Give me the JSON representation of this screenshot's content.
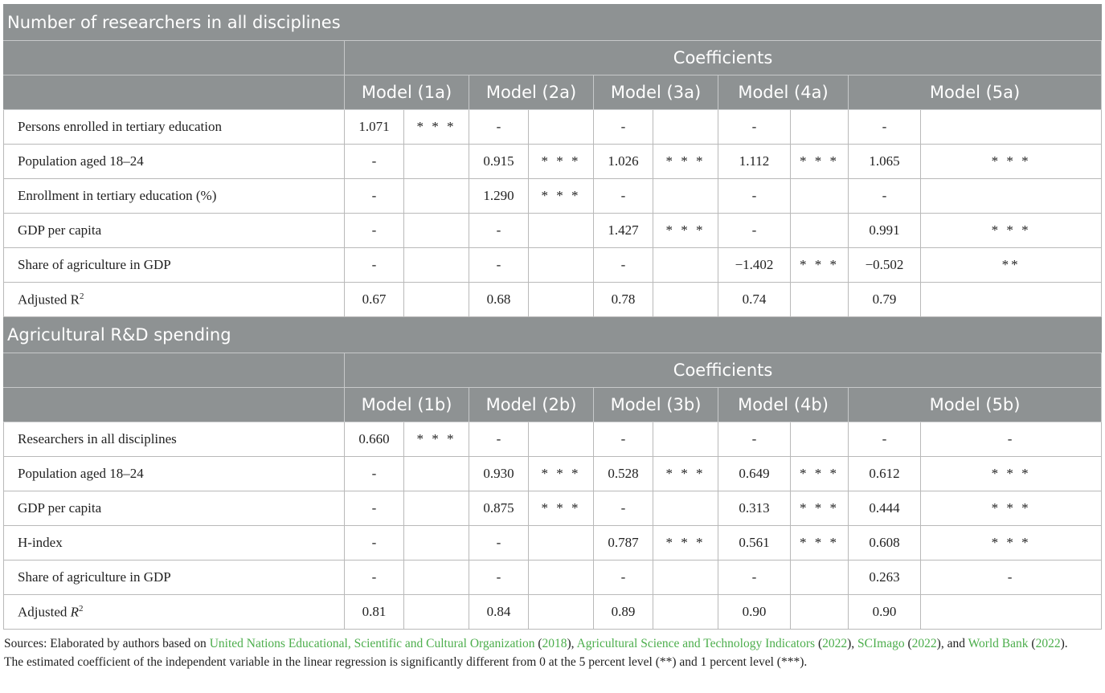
{
  "sections": [
    {
      "title": "Number of researchers in all disciplines",
      "coef_header": "Coefficients",
      "models": [
        "Model (1a)",
        "Model (2a)",
        "Model (3a)",
        "Model (4a)",
        "Model (5a)"
      ],
      "rows": [
        {
          "label": "Persons enrolled in tertiary education",
          "cells": [
            "1.071",
            "* * *",
            "-",
            "",
            "-",
            "",
            "-",
            "",
            "-",
            ""
          ]
        },
        {
          "label": "Population aged 18–24",
          "cells": [
            "-",
            "",
            "0.915",
            "* * *",
            "1.026",
            "* * *",
            "1.112",
            "* * *",
            "1.065",
            "* * *"
          ]
        },
        {
          "label": "Enrollment in tertiary education (%)",
          "cells": [
            "-",
            "",
            "1.290",
            "* * *",
            "-",
            "",
            "-",
            "",
            "-",
            ""
          ]
        },
        {
          "label": "GDP per capita",
          "cells": [
            "-",
            "",
            "-",
            "",
            "1.427",
            "* * *",
            "-",
            "",
            "0.991",
            "* * *"
          ]
        },
        {
          "label": "Share of agriculture in GDP",
          "cells": [
            "-",
            "",
            "-",
            "",
            "-",
            "",
            "−1.402",
            "* * *",
            "−0.502",
            "**"
          ]
        },
        {
          "label": "Adjusted R",
          "sup": "2",
          "cells": [
            "0.67",
            "",
            "0.68",
            "",
            "0.78",
            "",
            "0.74",
            "",
            "0.79",
            ""
          ]
        }
      ]
    },
    {
      "title": "Agricultural R&D spending",
      "coef_header": "Coefficients",
      "models": [
        "Model (1b)",
        "Model (2b)",
        "Model (3b)",
        "Model (4b)",
        "Model (5b)"
      ],
      "rows": [
        {
          "label": "Researchers in all disciplines",
          "cells": [
            "0.660",
            "* * *",
            "-",
            "",
            "-",
            "",
            "-",
            "",
            "-",
            "-"
          ]
        },
        {
          "label": "Population aged 18–24",
          "cells": [
            "-",
            "",
            "0.930",
            "* * *",
            "0.528",
            "* * *",
            "0.649",
            "* * *",
            "0.612",
            "* * *"
          ]
        },
        {
          "label": "GDP per capita",
          "cells": [
            "-",
            "",
            "0.875",
            "* * *",
            "-",
            "",
            "0.313",
            "* * *",
            "0.444",
            "* * *"
          ]
        },
        {
          "label": "H-index",
          "cells": [
            "-",
            "",
            "-",
            "",
            "0.787",
            "* * *",
            "0.561",
            "* * *",
            "0.608",
            "* * *"
          ]
        },
        {
          "label": "Share of agriculture in GDP",
          "cells": [
            "-",
            "",
            "-",
            "",
            "-",
            "",
            "-",
            "",
            "0.263",
            "-"
          ]
        },
        {
          "label": "Adjusted ",
          "label_italic": "R",
          "sup": "2",
          "cells": [
            "0.81",
            "",
            "0.84",
            "",
            "0.89",
            "",
            "0.90",
            "",
            "0.90",
            ""
          ]
        }
      ]
    }
  ],
  "footnote": {
    "sources_prefix": "Sources: Elaborated by authors based on ",
    "refs": [
      {
        "name": "United Nations Educational, Scientific and Cultural Organization",
        "year": "2018",
        "after": ", "
      },
      {
        "name": "Agricultural Science and Technology Indicators",
        "year": "2022",
        "after": ", "
      },
      {
        "name": "SCImago",
        "year": "2022",
        "after": ", and"
      },
      {
        "name": "World Bank",
        "year": "2022",
        "after": "."
      }
    ],
    "significance": "The estimated coefficient of the independent variable in the linear regression is significantly different from 0 at the 5 percent level (**) and 1 percent level (***)."
  }
}
